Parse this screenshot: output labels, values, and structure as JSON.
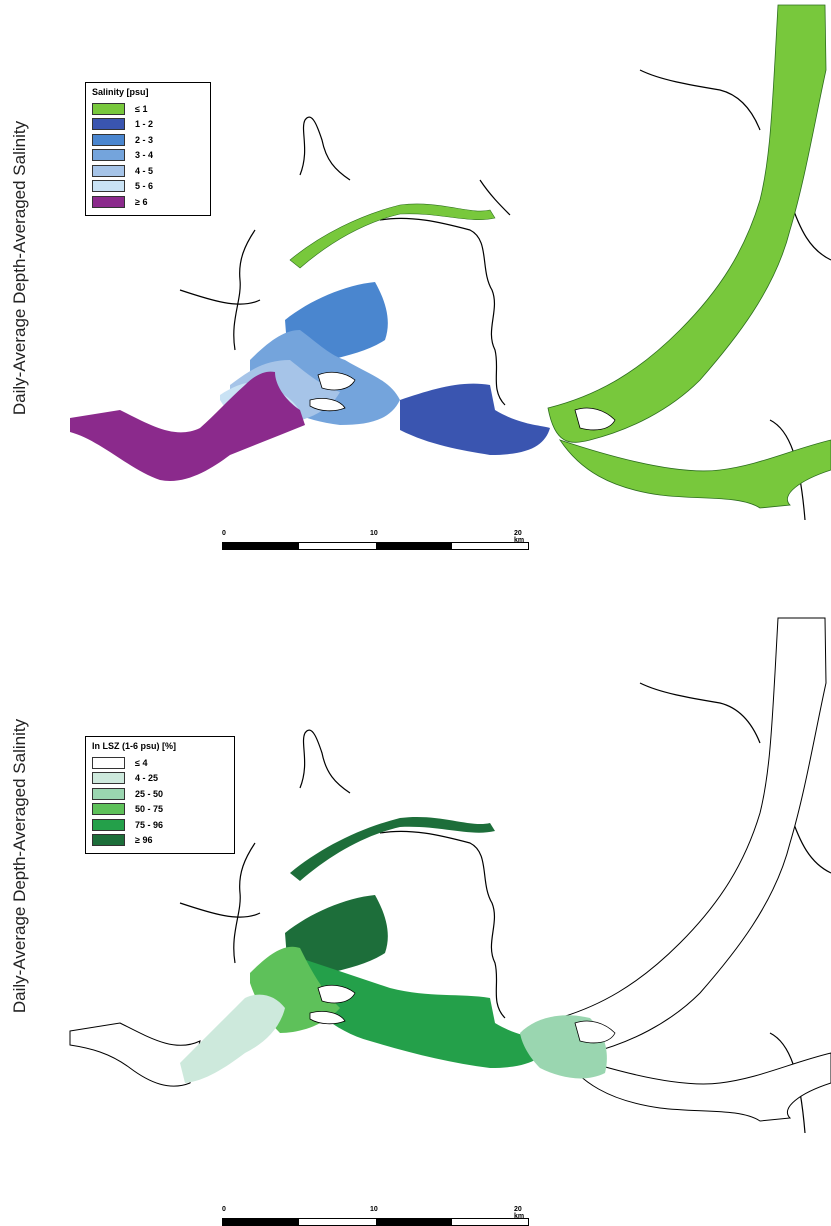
{
  "top_panel": {
    "ylabel": "Daily-Average Depth-Averaged Salinity",
    "legend": {
      "title": "Salinity [psu]",
      "items": [
        {
          "label": "≤ 1",
          "color": "#78c83c"
        },
        {
          "label": "1 - 2",
          "color": "#3a55b0"
        },
        {
          "label": "2 - 3",
          "color": "#4a86cf"
        },
        {
          "label": "3 - 4",
          "color": "#74a4dc"
        },
        {
          "label": "4 - 5",
          "color": "#a6c4e8"
        },
        {
          "label": "5 - 6",
          "color": "#c9e2f4"
        },
        {
          "label": "≥ 6",
          "color": "#8b2a8c"
        }
      ]
    },
    "scale": {
      "labels": [
        "0",
        "10",
        "20 km"
      ]
    }
  },
  "bottom_panel": {
    "ylabel": "Daily-Average Depth-Averaged Salinity",
    "legend": {
      "title": "In LSZ (1-6 psu) [%]",
      "items": [
        {
          "label": "≤ 4",
          "color": "#ffffff"
        },
        {
          "label": "4 - 25",
          "color": "#cde9dc"
        },
        {
          "label": "25 - 50",
          "color": "#9ad6b0"
        },
        {
          "label": "50 - 75",
          "color": "#5ec15a"
        },
        {
          "label": "75 - 96",
          "color": "#24a04a"
        },
        {
          "label": "≥ 96",
          "color": "#1d6e3a"
        }
      ]
    },
    "scale": {
      "labels": [
        "0",
        "10",
        "20 km"
      ]
    }
  }
}
